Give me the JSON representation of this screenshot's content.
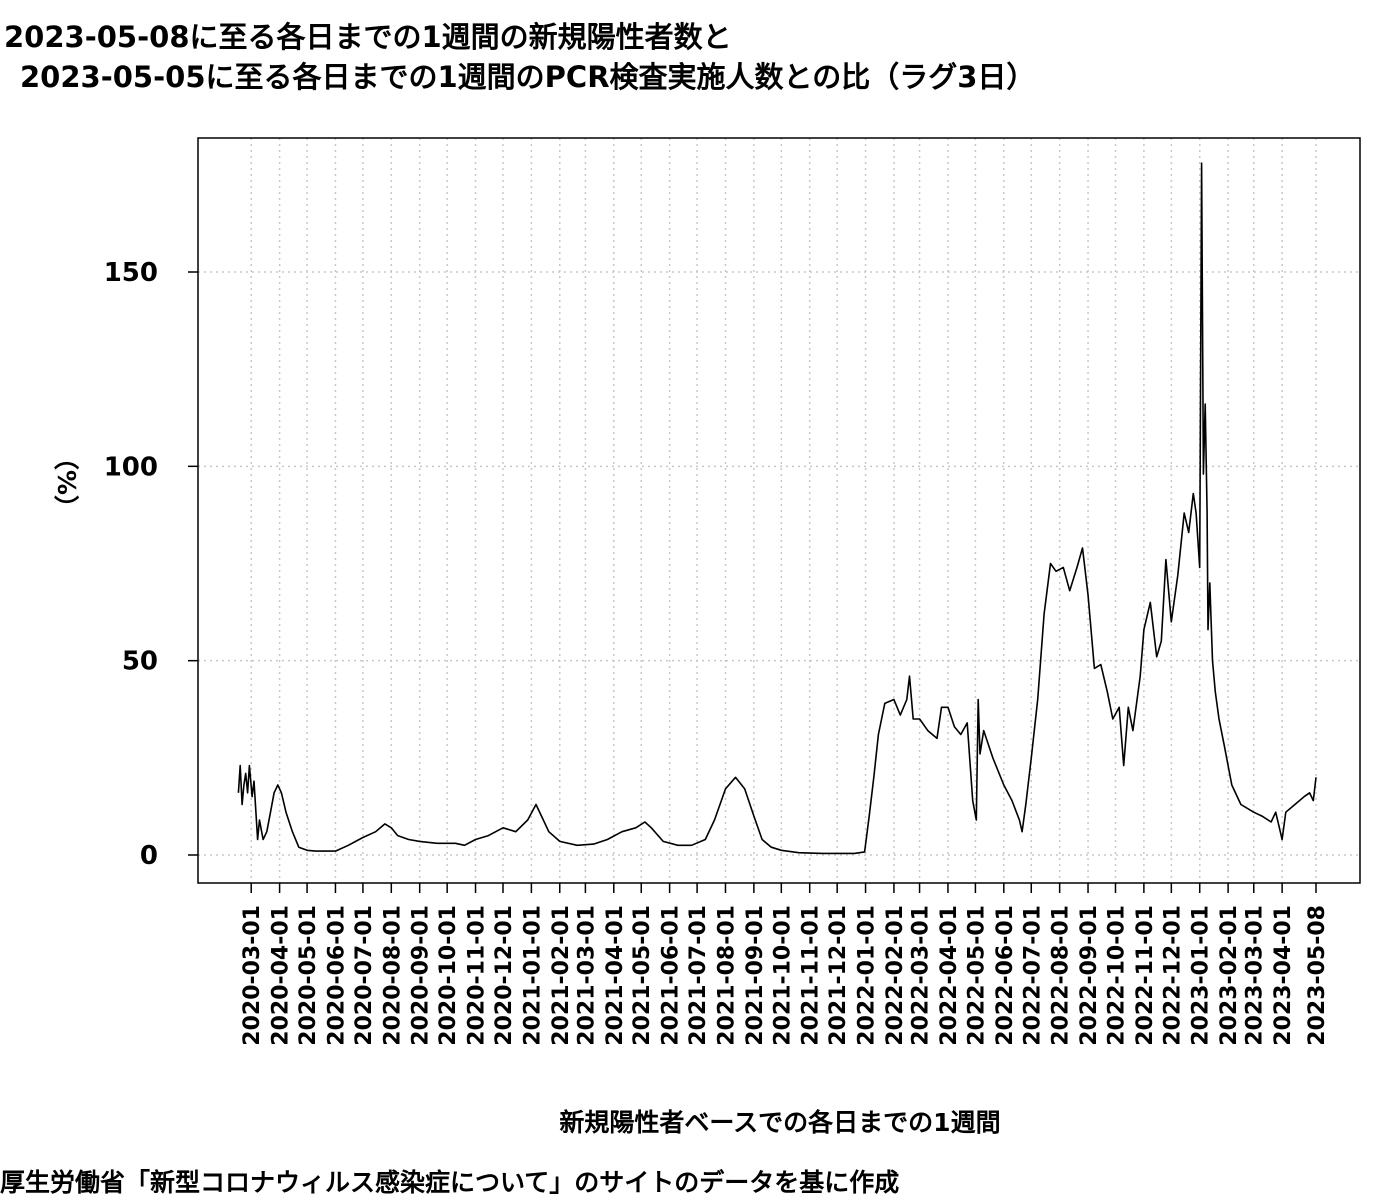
{
  "chart_data": {
    "type": "line",
    "title_line1": "2023-05-08に至る各日までの1週間の新規陽性者数と",
    "title_line2": "2023-05-05に至る各日までの1週間のPCR検査実施人数との比（ラグ3日）",
    "xlabel": "新規陽性者ベースでの各日までの1週間",
    "ylabel": "（%）",
    "source": "厚生労働省「新型コロナウィルス感染症について」のサイトのデータを基に作成",
    "ylim": [
      -7,
      182
    ],
    "yticks": [
      0,
      50,
      100,
      150
    ],
    "xrange": [
      "2020-02-09",
      "2023-05-08"
    ],
    "xticks": [
      "2020-03-01",
      "2020-04-01",
      "2020-05-01",
      "2020-06-01",
      "2020-07-01",
      "2020-08-01",
      "2020-09-01",
      "2020-10-01",
      "2020-11-01",
      "2020-12-01",
      "2021-01-01",
      "2021-02-01",
      "2021-03-01",
      "2021-04-01",
      "2021-05-01",
      "2021-06-01",
      "2021-07-01",
      "2021-08-01",
      "2021-09-01",
      "2021-10-01",
      "2021-11-01",
      "2021-12-01",
      "2022-01-01",
      "2022-02-01",
      "2022-03-01",
      "2022-04-01",
      "2022-05-01",
      "2022-06-01",
      "2022-07-01",
      "2022-08-01",
      "2022-09-01",
      "2022-10-01",
      "2022-11-01",
      "2022-12-01",
      "2023-01-01",
      "2023-02-01",
      "2023-03-01",
      "2023-04-01",
      "2023-05-08"
    ],
    "grid": true,
    "series": [
      {
        "x": [
          "2020-02-16",
          "2020-02-18",
          "2020-02-20",
          "2020-02-22",
          "2020-02-24",
          "2020-02-26",
          "2020-02-28",
          "2020-03-02",
          "2020-03-04",
          "2020-03-08",
          "2020-03-10",
          "2020-03-14",
          "2020-03-18",
          "2020-03-22",
          "2020-03-26",
          "2020-03-30",
          "2020-04-03",
          "2020-04-08",
          "2020-04-15",
          "2020-04-22",
          "2020-05-01",
          "2020-05-10",
          "2020-05-20",
          "2020-06-01",
          "2020-06-15",
          "2020-07-01",
          "2020-07-15",
          "2020-07-25",
          "2020-08-01",
          "2020-08-08",
          "2020-08-20",
          "2020-09-01",
          "2020-09-20",
          "2020-10-10",
          "2020-10-20",
          "2020-11-01",
          "2020-11-15",
          "2020-12-01",
          "2020-12-15",
          "2020-12-28",
          "2021-01-06",
          "2021-01-12",
          "2021-01-20",
          "2021-02-01",
          "2021-02-20",
          "2021-03-10",
          "2021-03-25",
          "2021-04-10",
          "2021-04-25",
          "2021-05-05",
          "2021-05-12",
          "2021-05-25",
          "2021-06-10",
          "2021-06-25",
          "2021-07-10",
          "2021-07-20",
          "2021-08-01",
          "2021-08-12",
          "2021-08-22",
          "2021-09-01",
          "2021-09-10",
          "2021-09-20",
          "2021-10-01",
          "2021-10-20",
          "2021-11-15",
          "2021-12-20",
          "2021-12-31",
          "2022-01-05",
          "2022-01-10",
          "2022-01-15",
          "2022-01-22",
          "2022-02-01",
          "2022-02-08",
          "2022-02-15",
          "2022-02-18",
          "2022-02-22",
          "2022-03-01",
          "2022-03-10",
          "2022-03-20",
          "2022-03-25",
          "2022-04-01",
          "2022-04-08",
          "2022-04-15",
          "2022-04-22",
          "2022-04-28",
          "2022-05-02",
          "2022-05-04",
          "2022-05-06",
          "2022-05-10",
          "2022-05-20",
          "2022-06-01",
          "2022-06-10",
          "2022-06-18",
          "2022-06-21",
          "2022-06-25",
          "2022-07-01",
          "2022-07-08",
          "2022-07-15",
          "2022-07-22",
          "2022-07-28",
          "2022-08-05",
          "2022-08-12",
          "2022-08-20",
          "2022-08-26",
          "2022-09-01",
          "2022-09-08",
          "2022-09-15",
          "2022-09-22",
          "2022-09-28",
          "2022-10-05",
          "2022-10-10",
          "2022-10-15",
          "2022-10-20",
          "2022-10-28",
          "2022-11-01",
          "2022-11-08",
          "2022-11-15",
          "2022-11-20",
          "2022-11-25",
          "2022-12-01",
          "2022-12-08",
          "2022-12-15",
          "2022-12-20",
          "2022-12-25",
          "2022-12-28",
          "2023-01-01",
          "2023-01-03",
          "2023-01-05",
          "2023-01-07",
          "2023-01-09",
          "2023-01-10",
          "2023-01-12",
          "2023-01-15",
          "2023-01-18",
          "2023-01-22",
          "2023-01-28",
          "2023-02-05",
          "2023-02-15",
          "2023-03-01",
          "2023-03-10",
          "2023-03-20",
          "2023-03-25",
          "2023-03-30",
          "2023-04-01",
          "2023-04-05",
          "2023-04-15",
          "2023-04-25",
          "2023-05-01",
          "2023-05-05",
          "2023-05-08"
        ],
        "y": [
          16,
          23,
          13,
          18,
          21,
          16,
          23,
          15,
          19,
          4,
          9,
          4,
          6,
          11,
          16,
          18,
          16,
          11,
          6,
          2,
          1.2,
          1,
          1,
          1,
          2.5,
          4.5,
          6,
          8,
          7,
          5,
          4,
          3.5,
          3,
          3,
          2.5,
          4,
          5,
          7,
          6,
          9,
          13,
          10,
          6,
          3.5,
          2.5,
          2.8,
          4,
          6,
          7,
          8.5,
          7,
          3.5,
          2.5,
          2.5,
          4,
          9,
          17,
          20,
          17,
          10,
          4,
          2,
          1.2,
          0.6,
          0.4,
          0.4,
          0.8,
          10,
          20,
          31,
          39,
          40,
          36,
          40,
          46,
          35,
          35,
          32,
          30,
          38,
          38,
          33,
          31,
          34,
          14,
          9,
          40,
          26,
          32,
          25,
          18,
          14,
          9,
          6,
          13,
          25,
          40,
          62,
          75,
          73,
          74,
          68,
          74,
          79,
          67,
          48,
          49,
          42,
          35,
          38,
          23,
          38,
          32,
          46,
          58,
          65,
          51,
          55,
          76,
          60,
          72,
          88,
          83,
          93,
          88,
          74,
          178,
          98,
          116,
          88,
          58,
          70,
          50,
          42,
          35,
          28,
          18,
          13,
          11,
          10,
          8.5,
          11,
          6,
          4,
          11,
          13,
          15,
          16,
          14,
          20
        ]
      }
    ]
  }
}
